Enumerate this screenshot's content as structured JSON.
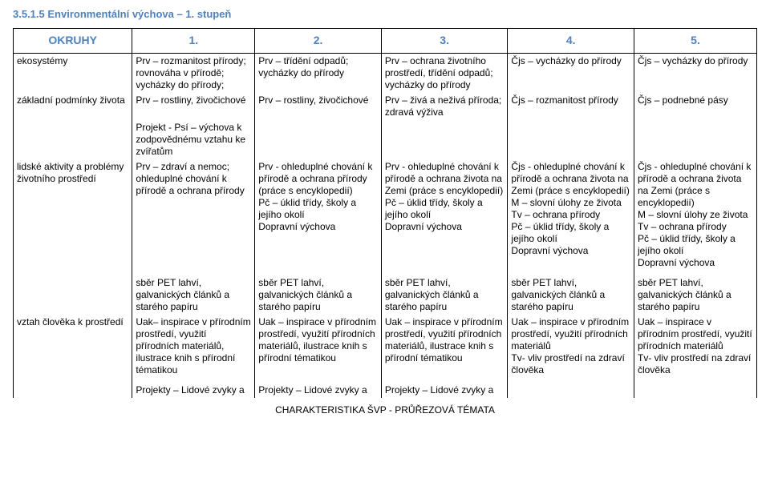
{
  "section_title": "3.5.1.5 Environmentální výchova – 1. stupeň",
  "footer": "CHARAKTERISTIKA ŠVP - PRŮŘEZOVÁ TÉMATA",
  "header": {
    "col0": "OKRUHY",
    "col1": "1.",
    "col2": "2.",
    "col3": "3.",
    "col4": "4.",
    "col5": "5."
  },
  "rows": [
    {
      "c0": "ekosystémy",
      "c1": "Prv – rozmanitost přírody; rovnováha v přírodě; vycházky do přírody;",
      "c2": "Prv – třídění odpadů; vycházky do přírody",
      "c3": "Prv – ochrana životního prostředí, třídění odpadů; vycházky do přírody",
      "c4": "Čjs – vycházky do přírody",
      "c5": "Čjs – vycházky do přírody"
    },
    {
      "c0": "základní podmínky života",
      "c1": "Prv – rostliny, živočichové",
      "c2": "Prv – rostliny, živočichové",
      "c3": "Prv – živá a neživá příroda; zdravá výživa",
      "c4": "Čjs – rozmanitost přírody",
      "c5": "Čjs – podnebné pásy"
    },
    {
      "c0": "",
      "c1": "Projekt - Psí – výchova k zodpovědnému vztahu ke zvířatům",
      "c2": "",
      "c3": "",
      "c4": "",
      "c5": ""
    },
    {
      "c0": "lidské aktivity a problémy životního prostředí",
      "c1": "Prv – zdraví a nemoc; ohleduplné chování k přírodě a ochrana přírody",
      "c2": "Prv - ohleduplné chování k přírodě a ochrana přírody (práce s encyklopedií)\nPč – úklid třídy, školy a jejího okolí\nDopravní výchova",
      "c3": "Prv - ohleduplné chování k přírodě a ochrana života na Zemi (práce s encyklopedií)\nPč – úklid třídy, školy a jejího okolí\nDopravní výchova",
      "c4": "Čjs - ohleduplné chování k přírodě a ochrana života na Zemi (práce s encyklopedií)\nM – slovní úlohy ze života\nTv – ochrana přírody\nPč – úklid třídy, školy a jejího okolí\nDopravní výchova",
      "c5": "Čjs - ohleduplné chování k přírodě a ochrana života na Zemi (práce s encyklopedií)\nM – slovní úlohy ze života\nTv – ochrana přírody\nPč – úklid třídy, školy a jejího okolí\nDopravní výchova"
    },
    {
      "c0": "",
      "c1": "sběr PET lahví, galvanických článků a starého papíru",
      "c2": "sběr PET lahví, galvanických článků a starého papíru",
      "c3": "sběr PET lahví, galvanických článků a starého papíru",
      "c4": "sběr PET lahví, galvanických článků a starého papíru",
      "c5": "sběr PET lahví, galvanických článků a starého papíru"
    },
    {
      "c0": "vztah člověka k prostředí",
      "c1": "Uak– inspirace v přírodním prostředí, využití přírodních materiálů, ilustrace knih s přírodní tématikou",
      "c2": "Uak – inspirace v přírodním prostředí, využití přírodních materiálů, ilustrace knih s přírodní tématikou",
      "c3": "Uak – inspirace v přírodním prostředí, využití přírodních materiálů, ilustrace knih s přírodní tématikou",
      "c4": "Uak – inspirace v přírodním prostředí, využití přírodních materiálů\nTv- vliv prostředí na zdraví člověka",
      "c5": "Uak – inspirace v přírodním prostředí, využití přírodních materiálů\nTv- vliv prostředí na zdraví člověka"
    },
    {
      "c0": "",
      "c1": "Projekty – Lidové zvyky a",
      "c2": "Projekty – Lidové zvyky a",
      "c3": "Projekty – Lidové zvyky a",
      "c4": "",
      "c5": ""
    }
  ]
}
